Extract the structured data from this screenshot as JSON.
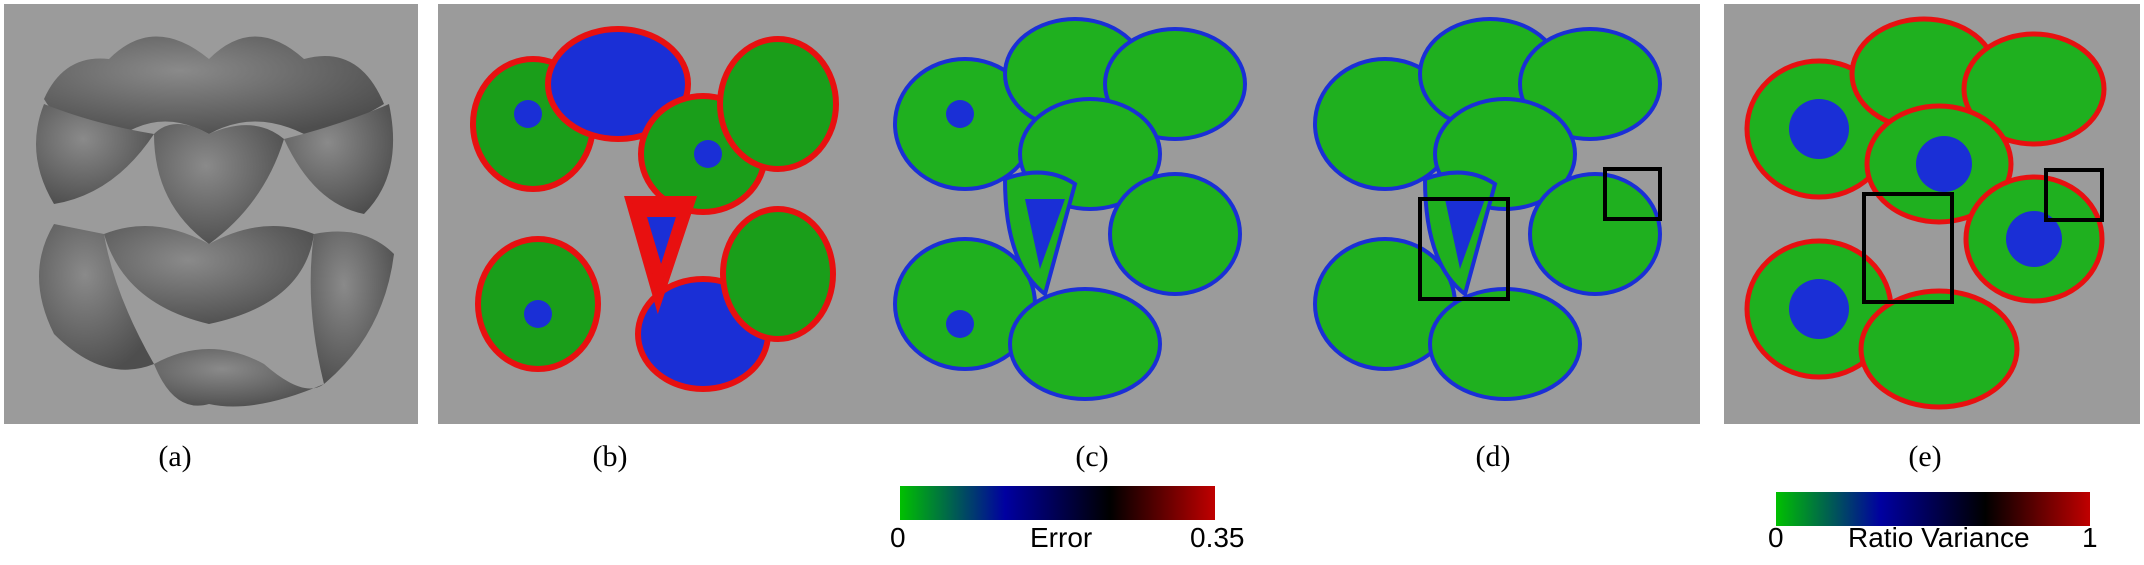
{
  "figure": {
    "panels": [
      {
        "id": "a",
        "caption": "(a)",
        "style": "gray-shaded"
      },
      {
        "id": "b",
        "caption": "(b)",
        "style": "error-map-exploded"
      },
      {
        "id": "c",
        "caption": "(c)",
        "style": "error-map"
      },
      {
        "id": "d",
        "caption": "(d)",
        "style": "error-map-highlighted"
      },
      {
        "id": "e",
        "caption": "(e)",
        "style": "ratio-variance-map"
      }
    ],
    "colorbars": [
      {
        "id": "error",
        "label": "Error",
        "min": "0",
        "max": "0.35",
        "colors": [
          "#00c000",
          "#0000a0",
          "#000000",
          "#c00000"
        ]
      },
      {
        "id": "ratio",
        "label": "Ratio Variance",
        "min": "0",
        "max": "1",
        "colors": [
          "#00c000",
          "#0000a0",
          "#000000",
          "#c00000"
        ]
      }
    ],
    "colors": {
      "background_gray": "#9b9b9b",
      "surface_gray": "#6e6e6e",
      "green": "#19b319",
      "blue": "#1a2fd6",
      "red": "#e81010"
    }
  }
}
